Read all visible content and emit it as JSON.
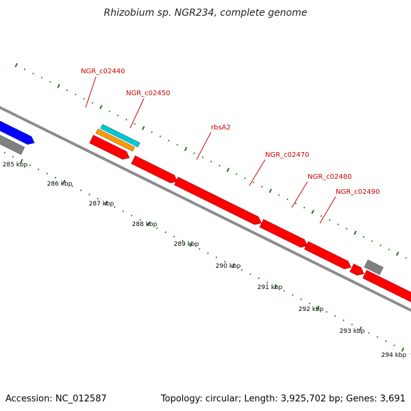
{
  "title": "Rhizobium sp. NGR234, complete genome",
  "footer": {
    "accession": "Accession: NC_012587",
    "summary": "Topology: circular; Length: 3,925,702 bp; Genes: 3,691"
  },
  "colors": {
    "backbone": "#8c8c8c",
    "tick": "#1a7a1a",
    "gene_forward": "#ff0000",
    "gene_other": "#808080",
    "blue_feature": "#0000ff",
    "cyan_feature": "#00c8d8",
    "orange_feature": "#ff9900",
    "label": "#cc0000"
  },
  "position_labels": [
    "285 kbp",
    "286 kbp",
    "287 kbp",
    "288 kbp",
    "289 kbp",
    "290 kbp",
    "291 kbp",
    "292 kbp",
    "293 kbp",
    "294 kbp"
  ],
  "gene_labels": [
    "NGR_c02440",
    "NGR_c02450",
    "rbsA2",
    "NGR_c02470",
    "NGR_c02480",
    "NGR_c02490"
  ]
}
